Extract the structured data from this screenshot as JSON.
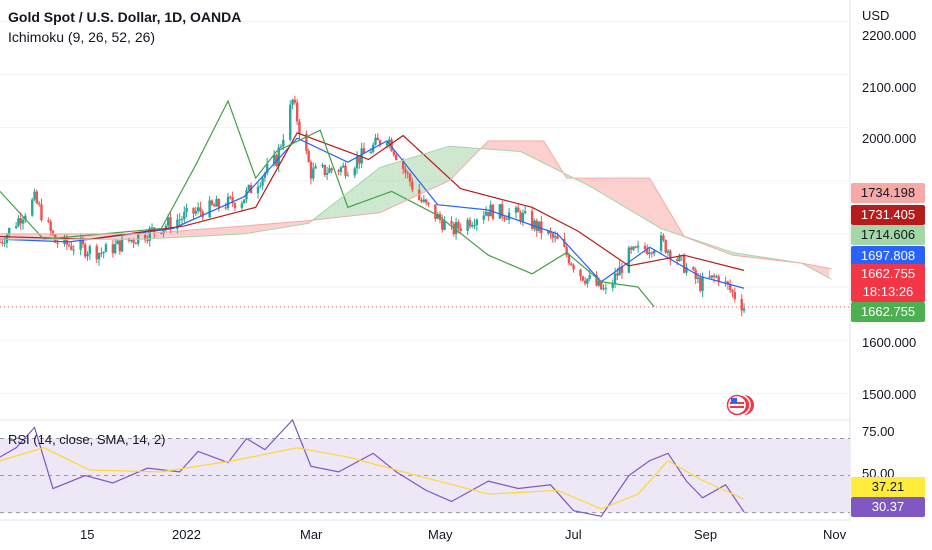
{
  "header": {
    "title": "Gold Spot / U.S. Dollar, 1D, OANDA",
    "indicator": "Ichimoku (9, 26, 52, 26)"
  },
  "rsi": {
    "label": "RSI (14, close, SMA, 14, 2)"
  },
  "axis": {
    "currency": "USD",
    "price_ticks": [
      "2200.000",
      "2100.000",
      "2000.000",
      "1600.000",
      "1500.000"
    ],
    "rsi_ticks": [
      "75.00",
      "50.00"
    ],
    "time_ticks": [
      "15",
      "2022",
      "Mar",
      "May",
      "Jul",
      "Sep",
      "Nov"
    ]
  },
  "price_tags": [
    {
      "value": "1734.198",
      "color": "#f7a9a7",
      "text_color": "#131722"
    },
    {
      "value": "1731.405",
      "color": "#b71c1c",
      "text_color": "#ffffff"
    },
    {
      "value": "1714.606",
      "color": "#a5d6a7",
      "text_color": "#131722"
    },
    {
      "value": "1697.808",
      "color": "#2962ff",
      "text_color": "#ffffff"
    },
    {
      "value": "1662.755",
      "color": "#f23645",
      "text_color": "#ffffff"
    },
    {
      "value": "18:13:26",
      "color": "#f23645",
      "text_color": "#ffffff"
    },
    {
      "value": "1662.755",
      "color": "#4caf50",
      "text_color": "#ffffff"
    }
  ],
  "rsi_tags": [
    {
      "value": "37.21",
      "color": "#ffeb3b",
      "text_color": "#131722"
    },
    {
      "value": "30.37",
      "color": "#7e57c2",
      "text_color": "#ffffff"
    }
  ],
  "colors": {
    "up": "#26a69a",
    "down": "#ef5350",
    "tenkan": "#2962ff",
    "kijun": "#b71c1c",
    "chikou": "#43a047",
    "cloud_bull": "#a5d6a7",
    "cloud_bear": "#f7a9a7",
    "rsi": "#7e57c2",
    "rsi_ma": "#fdd835",
    "rsi_band": "#ede7f6"
  },
  "chart_data": [
    {
      "type": "candlestick",
      "title": "Gold Spot / U.S. Dollar, 1D, OANDA",
      "ylim": [
        1450,
        2240
      ],
      "xlim": [
        "2021-11-01",
        "2022-11-05"
      ],
      "x_ticks": [
        "15",
        "2022",
        "Mar",
        "May",
        "Jul",
        "Sep",
        "Nov"
      ],
      "y_ticks": [
        1500,
        1600,
        2000,
        2100,
        2200
      ],
      "last_price": 1662.755,
      "close_path": [
        [
          "2021-11-01",
          1785
        ],
        [
          "2021-11-16",
          1865
        ],
        [
          "2021-11-25",
          1785
        ],
        [
          "2021-12-15",
          1765
        ],
        [
          "2022-01-03",
          1800
        ],
        [
          "2022-01-24",
          1840
        ],
        [
          "2022-02-14",
          1865
        ],
        [
          "2022-03-01",
          1940
        ],
        [
          "2022-03-08",
          2050
        ],
        [
          "2022-03-16",
          1915
        ],
        [
          "2022-04-01",
          1925
        ],
        [
          "2022-04-18",
          1985
        ],
        [
          "2022-05-02",
          1865
        ],
        [
          "2022-05-16",
          1805
        ],
        [
          "2022-05-31",
          1845
        ],
        [
          "2022-06-15",
          1835
        ],
        [
          "2022-07-01",
          1785
        ],
        [
          "2022-07-11",
          1725
        ],
        [
          "2022-07-22",
          1690
        ],
        [
          "2022-08-01",
          1760
        ],
        [
          "2022-08-15",
          1785
        ],
        [
          "2022-08-25",
          1740
        ],
        [
          "2022-09-01",
          1705
        ],
        [
          "2022-09-09",
          1720
        ],
        [
          "2022-09-20",
          1662.755
        ]
      ],
      "series": [
        {
          "name": "Tenkan",
          "values": [
            [
              "2021-11-01",
              1790
            ],
            [
              "2021-12-01",
              1785
            ],
            [
              "2022-01-15",
              1810
            ],
            [
              "2022-02-15",
              1870
            ],
            [
              "2022-03-10",
              1980
            ],
            [
              "2022-04-01",
              1935
            ],
            [
              "2022-04-18",
              1975
            ],
            [
              "2022-05-10",
              1855
            ],
            [
              "2022-06-01",
              1845
            ],
            [
              "2022-07-01",
              1800
            ],
            [
              "2022-07-20",
              1710
            ],
            [
              "2022-08-10",
              1775
            ],
            [
              "2022-09-01",
              1720
            ],
            [
              "2022-09-20",
              1697.808
            ]
          ]
        },
        {
          "name": "Kijun",
          "values": [
            [
              "2021-11-01",
              1795
            ],
            [
              "2021-12-10",
              1790
            ],
            [
              "2022-01-20",
              1815
            ],
            [
              "2022-02-20",
              1850
            ],
            [
              "2022-03-10",
              1990
            ],
            [
              "2022-04-10",
              1940
            ],
            [
              "2022-04-25",
              1985
            ],
            [
              "2022-05-20",
              1885
            ],
            [
              "2022-06-20",
              1850
            ],
            [
              "2022-07-10",
              1805
            ],
            [
              "2022-08-01",
              1740
            ],
            [
              "2022-08-25",
              1760
            ],
            [
              "2022-09-20",
              1731.405
            ]
          ]
        },
        {
          "name": "Chikou",
          "values": [
            [
              "2021-11-01",
              1880
            ],
            [
              "2021-11-20",
              1790
            ],
            [
              "2022-01-10",
              1810
            ],
            [
              "2022-01-25",
              1930
            ],
            [
              "2022-02-08",
              2050
            ],
            [
              "2022-02-20",
              1905
            ],
            [
              "2022-03-01",
              1955
            ],
            [
              "2022-03-20",
              1995
            ],
            [
              "2022-04-01",
              1850
            ],
            [
              "2022-04-20",
              1880
            ],
            [
              "2022-05-10",
              1835
            ],
            [
              "2022-06-01",
              1760
            ],
            [
              "2022-06-20",
              1725
            ],
            [
              "2022-07-05",
              1765
            ],
            [
              "2022-07-20",
              1710
            ],
            [
              "2022-08-05",
              1700
            ],
            [
              "2022-08-12",
              1662.755
            ]
          ]
        },
        {
          "name": "Senkou A",
          "values": [
            [
              "2021-11-01",
              1790
            ],
            [
              "2022-01-01",
              1790
            ],
            [
              "2022-02-15",
              1800
            ],
            [
              "2022-03-15",
              1820
            ],
            [
              "2022-04-15",
              1925
            ],
            [
              "2022-05-15",
              1965
            ],
            [
              "2022-06-15",
              1955
            ],
            [
              "2022-07-15",
              1890
            ],
            [
              "2022-08-15",
              1810
            ],
            [
              "2022-09-15",
              1765
            ],
            [
              "2022-10-15",
              1745
            ],
            [
              "2022-10-28",
              1714.606
            ]
          ]
        },
        {
          "name": "Senkou B",
          "values": [
            [
              "2021-11-01",
              1800
            ],
            [
              "2022-01-01",
              1800
            ],
            [
              "2022-02-15",
              1815
            ],
            [
              "2022-03-15",
              1825
            ],
            [
              "2022-04-15",
              1840
            ],
            [
              "2022-05-15",
              1900
            ],
            [
              "2022-06-01",
              1975
            ],
            [
              "2022-06-25",
              1975
            ],
            [
              "2022-07-05",
              1905
            ],
            [
              "2022-08-10",
              1905
            ],
            [
              "2022-08-25",
              1795
            ],
            [
              "2022-09-15",
              1760
            ],
            [
              "2022-10-15",
              1745
            ],
            [
              "2022-10-28",
              1734.198
            ]
          ]
        }
      ]
    },
    {
      "type": "line",
      "title": "RSI (14, close, SMA, 14, 2)",
      "ylim": [
        26,
        80
      ],
      "y_ticks": [
        50,
        75
      ],
      "bands": [
        30,
        70
      ],
      "series": [
        {
          "name": "RSI",
          "values": [
            [
              "2021-11-01",
              60
            ],
            [
              "2021-11-08",
              65
            ],
            [
              "2021-11-16",
              76
            ],
            [
              "2021-11-24",
              43
            ],
            [
              "2021-12-08",
              50
            ],
            [
              "2021-12-20",
              46
            ],
            [
              "2022-01-04",
              54
            ],
            [
              "2022-01-18",
              52
            ],
            [
              "2022-01-26",
              63
            ],
            [
              "2022-02-08",
              57
            ],
            [
              "2022-02-16",
              70
            ],
            [
              "2022-02-24",
              64
            ],
            [
              "2022-03-08",
              80
            ],
            [
              "2022-03-16",
              55
            ],
            [
              "2022-03-28",
              52
            ],
            [
              "2022-04-12",
              62
            ],
            [
              "2022-04-22",
              52
            ],
            [
              "2022-05-05",
              42
            ],
            [
              "2022-05-16",
              36
            ],
            [
              "2022-06-01",
              47
            ],
            [
              "2022-06-14",
              43
            ],
            [
              "2022-06-28",
              45
            ],
            [
              "2022-07-08",
              31
            ],
            [
              "2022-07-20",
              28
            ],
            [
              "2022-08-01",
              50
            ],
            [
              "2022-08-10",
              58
            ],
            [
              "2022-08-18",
              62
            ],
            [
              "2022-08-26",
              47
            ],
            [
              "2022-09-02",
              38
            ],
            [
              "2022-09-12",
              45
            ],
            [
              "2022-09-20",
              30.37
            ]
          ]
        },
        {
          "name": "RSI-based MA",
          "values": [
            [
              "2021-11-01",
              58
            ],
            [
              "2021-11-20",
              65
            ],
            [
              "2021-12-10",
              53
            ],
            [
              "2022-01-10",
              52
            ],
            [
              "2022-02-10",
              58
            ],
            [
              "2022-03-10",
              65
            ],
            [
              "2022-04-01",
              60
            ],
            [
              "2022-05-01",
              50
            ],
            [
              "2022-06-01",
              40
            ],
            [
              "2022-07-01",
              42
            ],
            [
              "2022-07-20",
              32
            ],
            [
              "2022-08-05",
              40
            ],
            [
              "2022-08-18",
              58
            ],
            [
              "2022-09-01",
              48
            ],
            [
              "2022-09-20",
              37.21
            ]
          ]
        }
      ]
    }
  ]
}
